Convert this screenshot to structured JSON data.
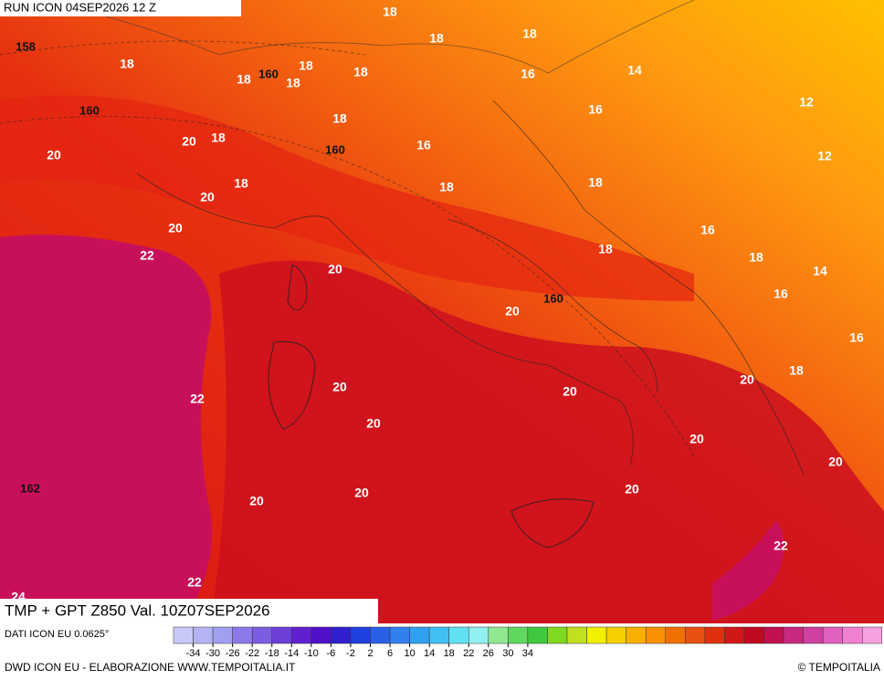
{
  "header": {
    "run": "RUN ICON 04SEP2026 12 Z"
  },
  "map": {
    "temperature_labels": [
      18,
      18,
      18,
      18,
      18,
      18,
      18,
      18,
      16,
      14,
      12,
      12,
      18,
      16,
      16,
      20,
      18,
      20,
      18,
      20,
      18,
      18,
      20,
      18,
      16,
      18,
      14,
      22,
      20,
      16,
      20,
      16,
      20,
      18,
      20,
      20,
      22,
      20,
      20,
      20,
      20,
      20,
      20,
      22,
      22,
      24
    ],
    "height_labels": [
      158,
      160,
      160,
      160,
      160,
      162
    ]
  },
  "title": "TMP + GPT Z850 Val. 10Z07SEP2026",
  "legend": {
    "source": "DATI ICON EU 0.0625°",
    "ticks": [
      -34,
      -30,
      -26,
      -22,
      -18,
      -14,
      -10,
      -6,
      -2,
      2,
      6,
      10,
      14,
      18,
      22,
      26,
      30,
      34
    ]
  },
  "footer": {
    "credit": "DWD ICON EU - ELABORAZIONE WWW.TEMPOITALIA.IT",
    "brand": "© TEMPOITALIA"
  }
}
